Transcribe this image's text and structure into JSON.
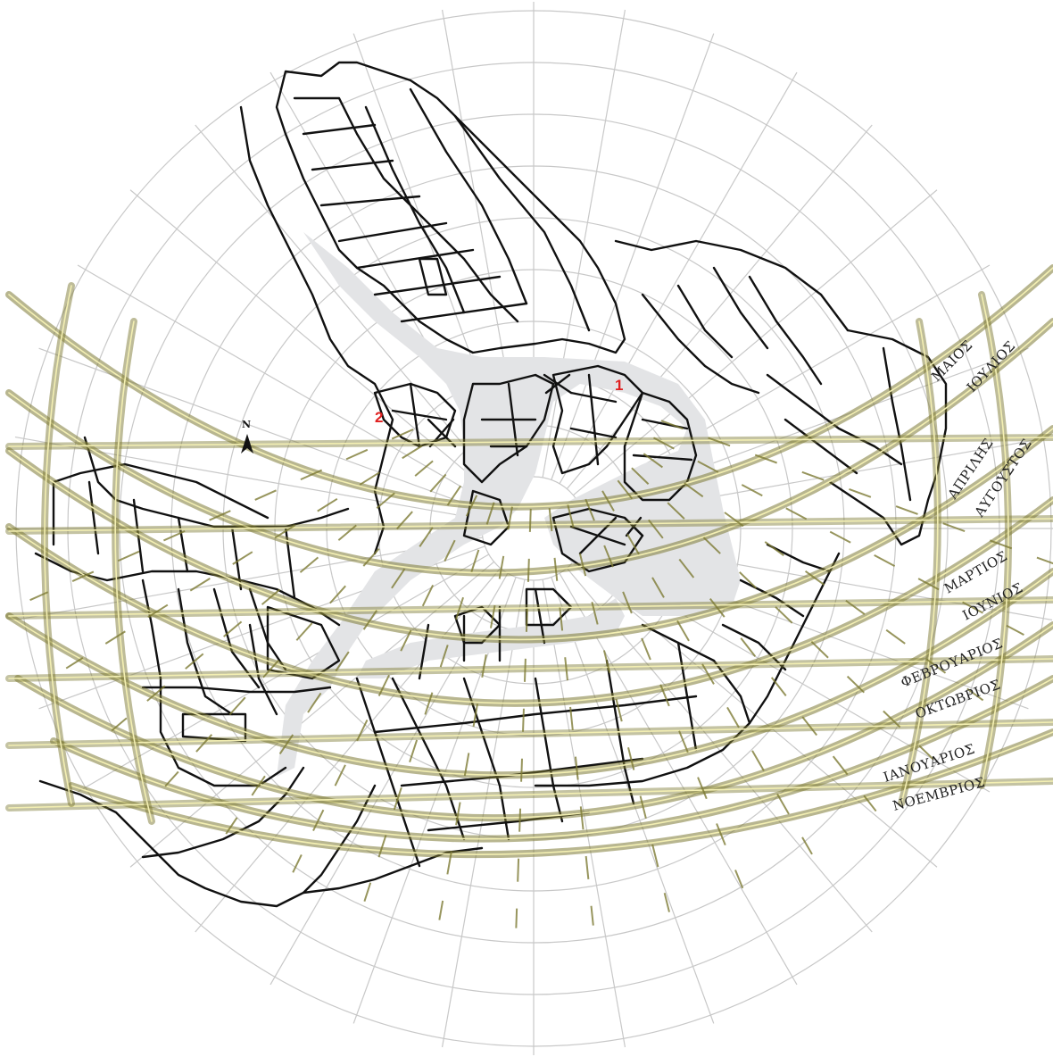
{
  "north": {
    "label": "N",
    "icon": "north-arrow-icon"
  },
  "markers": [
    {
      "id": "1",
      "label": "1",
      "color": "#e02020"
    },
    {
      "id": "2",
      "label": "2",
      "color": "#e02020"
    }
  ],
  "month_labels": [
    {
      "label": "ΜΑΙΟΣ"
    },
    {
      "label": "ΙΟΥΛΙΟΣ"
    },
    {
      "label": "ΑΠΡΙΛΗΣ"
    },
    {
      "label": "ΑΥΓΟΥΣΤΟΣ"
    },
    {
      "label": "ΜΑΡΤΙΟΣ"
    },
    {
      "label": "ΙΟΥΝΙΟΣ"
    },
    {
      "label": "ΦΕΒΡΟΥΑΡΙΟΣ"
    },
    {
      "label": "ΟΚΤΩΒΡΙΟΣ"
    },
    {
      "label": "ΙΑΝΟΥΑΡΙΟΣ"
    },
    {
      "label": "ΝΟΕΜΒΡΙΟΣ"
    }
  ],
  "colors": {
    "grid": "#c8c8c8",
    "street_fill": "#e3e4e6",
    "block_outline": "#111111",
    "sun_band": "#7d7a34",
    "sun_band_highlight": "#f3efb3"
  }
}
